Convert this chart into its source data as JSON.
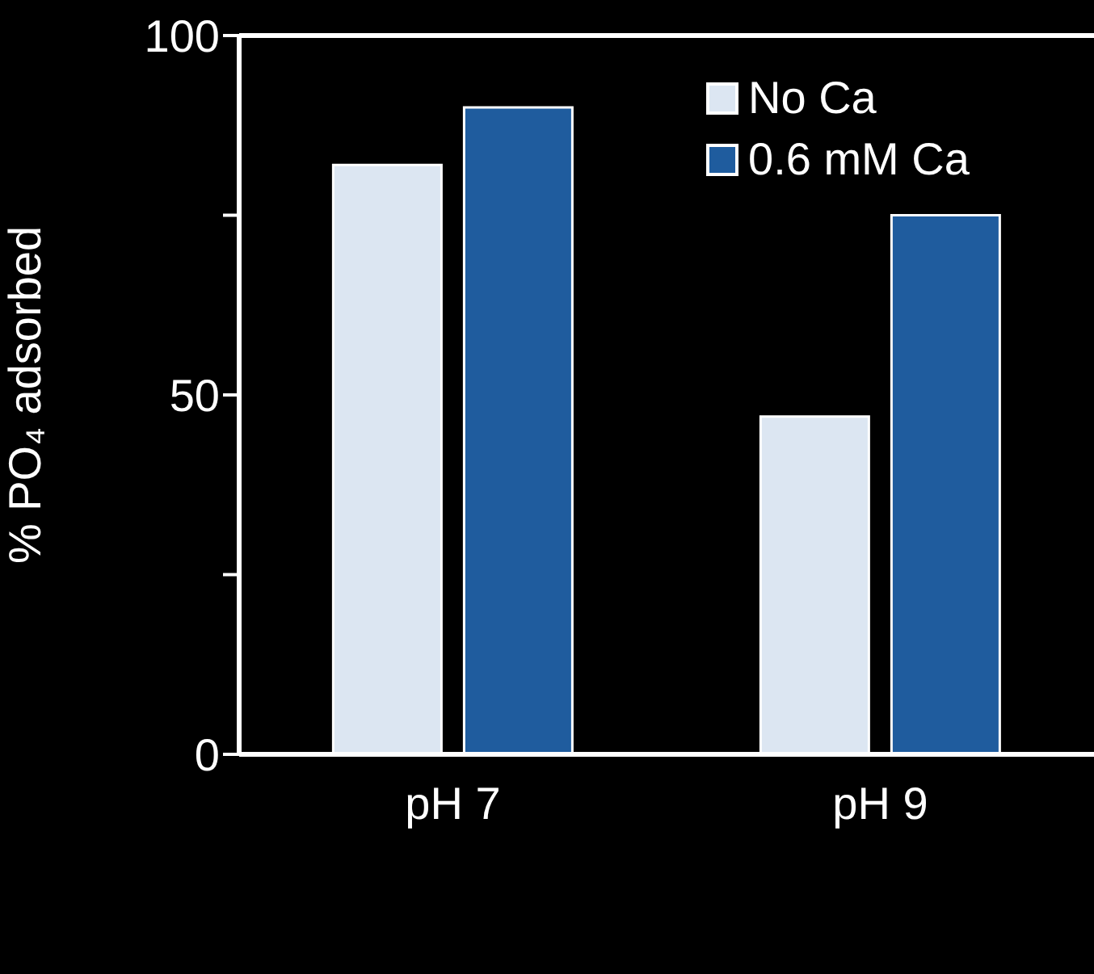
{
  "chart_data": {
    "type": "bar",
    "ylabel": "% PO₄ adsorbed",
    "categories": [
      "pH 7",
      "pH 9"
    ],
    "series": [
      {
        "name": "No Ca",
        "color": "#dce6f2",
        "values": [
          82,
          47
        ]
      },
      {
        "name": "0.6 mM Ca",
        "color": "#1f5c9e",
        "values": [
          90,
          75
        ]
      }
    ],
    "ylim": [
      0,
      100
    ],
    "yticks": [
      0,
      {
        "value": 25,
        "label": null
      },
      50,
      {
        "value": 75,
        "label": null
      },
      100
    ],
    "legend": "top right"
  }
}
